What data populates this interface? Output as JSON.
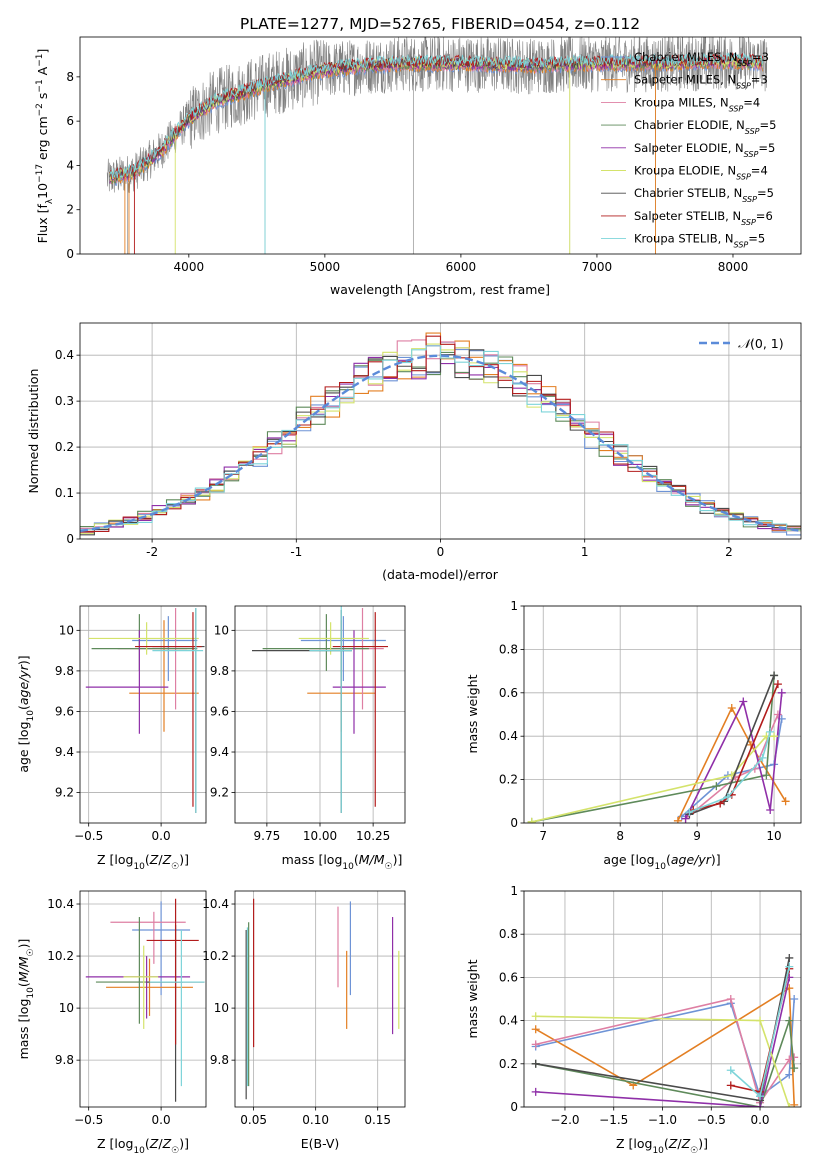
{
  "figure_title": "PLATE=1277, MJD=52765, FIBERID=0454, z=0.112",
  "colors": {
    "data": "#808080",
    "models": [
      "#6e93d6",
      "#e37f23",
      "#de7fa3",
      "#5e8a5a",
      "#8f2fa8",
      "#d4e36b",
      "#4a4a4a",
      "#b21c1c",
      "#7dd4d9"
    ],
    "normal": "#5b8bd9"
  },
  "chart_data": [
    {
      "id": "spectrum",
      "type": "line",
      "xlabel": "wavelength [Angstrom, rest frame]",
      "ylabel": "Flux [f_λ 10^-17 erg cm^-2 s^-1 A^-1]",
      "xlim": [
        3200,
        8500
      ],
      "ylim": [
        0,
        9.8
      ],
      "xticks": [
        4000,
        5000,
        6000,
        7000,
        8000
      ],
      "yticks": [
        0,
        2,
        4,
        6,
        8
      ],
      "grid": false,
      "legend_position": "top-right",
      "legend": [
        {
          "model": "Chabrier MILES",
          "nssp": "3"
        },
        {
          "model": "Salpeter MILES",
          "nssp": "3"
        },
        {
          "model": "Kroupa MILES",
          "nssp": "4"
        },
        {
          "model": "Chabrier ELODIE",
          "nssp": "5"
        },
        {
          "model": "Salpeter ELODIE",
          "nssp": "5"
        },
        {
          "model": "Kroupa ELODIE",
          "nssp": "4"
        },
        {
          "model": "Chabrier STELIB",
          "nssp": "5"
        },
        {
          "model": "Salpeter STELIB",
          "nssp": "6"
        },
        {
          "model": "Kroupa STELIB",
          "nssp": "5"
        }
      ],
      "wavelength_range": [
        3400,
        8250
      ],
      "continuum": {
        "x": [
          3400,
          3600,
          3800,
          4000,
          4200,
          4400,
          4600,
          4800,
          5000,
          5300,
          5600,
          6000,
          6500,
          7000,
          7500,
          8000,
          8250
        ],
        "y": [
          3.4,
          3.7,
          4.7,
          6.1,
          6.9,
          7.3,
          7.7,
          8.0,
          8.3,
          8.5,
          8.6,
          8.6,
          8.5,
          8.6,
          8.6,
          8.7,
          8.6
        ]
      }
    },
    {
      "id": "residuals",
      "type": "step",
      "xlabel": "(data-model)/error",
      "ylabel": "Normed distribution",
      "xlim": [
        -2.5,
        2.5
      ],
      "ylim": [
        0,
        0.47
      ],
      "xticks": [
        -2,
        -1,
        0,
        1,
        2
      ],
      "yticks": [
        0.0,
        0.1,
        0.2,
        0.3,
        0.4
      ],
      "grid": true,
      "legend_position": "top-right",
      "legend": [
        {
          "label": "N(0,1)"
        }
      ],
      "normal_curve": {
        "mean": 0,
        "sigma": 1
      }
    },
    {
      "id": "age_vs_Z",
      "type": "errorbar",
      "xlabel": "Z [log10(Z/Z☉)]",
      "ylabel": "age [log10(age/yr)]",
      "xlim": [
        -0.56,
        0.31
      ],
      "ylim": [
        9.05,
        10.12
      ],
      "xticks": [
        -0.5,
        0.0
      ],
      "xtick_labels": [
        "−0.5",
        "0.0"
      ],
      "yticks": [
        9.2,
        9.4,
        9.6,
        9.8,
        10.0
      ],
      "grid": true,
      "series": [
        {
          "x": 0.05,
          "xerr": [
            0.25,
            0.2
          ],
          "y": 9.95,
          "yerr": [
            0.2,
            0.12
          ]
        },
        {
          "x": 0.02,
          "xerr": [
            0.24,
            0.24
          ],
          "y": 9.69,
          "yerr": [
            0.19,
            0.36
          ]
        },
        {
          "x": 0.1,
          "xerr": [
            0.4,
            0.08
          ],
          "y": 9.91,
          "yerr": [
            0.3,
            0.2
          ]
        },
        {
          "x": -0.15,
          "xerr": [
            0.33,
            0.4
          ],
          "y": 9.91,
          "yerr": [
            0.11,
            0.17
          ]
        },
        {
          "x": -0.15,
          "xerr": [
            0.37,
            0.2
          ],
          "y": 9.72,
          "yerr": [
            0.23,
            0.28
          ]
        },
        {
          "x": -0.1,
          "xerr": [
            0.4,
            0.36
          ],
          "y": 9.96,
          "yerr": [
            0.08,
            0.08
          ]
        },
        {
          "x": 0.24,
          "xerr": [
            0.3,
            0.06
          ],
          "y": 9.92,
          "yerr": [
            0.82,
            0.19
          ]
        },
        {
          "x": 0.22,
          "xerr": [
            0.4,
            0.06
          ],
          "y": 9.92,
          "yerr": [
            0.79,
            0.17
          ]
        },
        {
          "x": 0.24,
          "xerr": [
            0.3,
            0.05
          ],
          "y": 9.9,
          "yerr": [
            0.8,
            0.21
          ]
        }
      ]
    },
    {
      "id": "age_vs_mass",
      "type": "errorbar",
      "xlabel": "mass [log10(M/M☉)]",
      "ylabel": "",
      "xlim": [
        9.6,
        10.4
      ],
      "ylim": [
        9.05,
        10.12
      ],
      "xticks": [
        9.75,
        10.0,
        10.25
      ],
      "xtick_labels": [
        "9.75",
        "10.00",
        "10.25"
      ],
      "xtick_display": "10.00110.25",
      "yticks": [
        9.2,
        9.4,
        9.6,
        9.8,
        10.0
      ],
      "grid": true,
      "series": [
        {
          "x": 10.11,
          "xerr": [
            0.2,
            0.2
          ],
          "y": 9.95,
          "yerr": [
            0.2,
            0.12
          ]
        },
        {
          "x": 10.1,
          "xerr": [
            0.16,
            0.16
          ],
          "y": 9.69,
          "yerr": [
            0.19,
            0.36
          ]
        },
        {
          "x": 10.2,
          "xerr": [
            0.25,
            0.1
          ],
          "y": 9.91,
          "yerr": [
            0.3,
            0.2
          ]
        },
        {
          "x": 10.03,
          "xerr": [
            0.3,
            0.2
          ],
          "y": 9.91,
          "yerr": [
            0.11,
            0.17
          ]
        },
        {
          "x": 10.16,
          "xerr": [
            0.1,
            0.15
          ],
          "y": 9.72,
          "yerr": [
            0.23,
            0.28
          ]
        },
        {
          "x": 10.05,
          "xerr": [
            0.15,
            0.18
          ],
          "y": 9.96,
          "yerr": [
            0.08,
            0.08
          ]
        },
        {
          "x": 10.1,
          "xerr": [
            0.42,
            0.05
          ],
          "y": 9.9,
          "yerr": [
            0.8,
            0.2
          ]
        },
        {
          "x": 10.26,
          "xerr": [
            0.2,
            0.06
          ],
          "y": 9.92,
          "yerr": [
            0.79,
            0.17
          ]
        },
        {
          "x": 10.1,
          "xerr": [
            0.15,
            0.05
          ],
          "y": 9.9,
          "yerr": [
            0.8,
            0.22
          ]
        }
      ]
    },
    {
      "id": "weight_vs_age",
      "type": "line",
      "xlabel": "age [log10(age/yr)]",
      "ylabel": "mass weight",
      "xlim": [
        6.75,
        10.35
      ],
      "ylim": [
        0,
        1.0
      ],
      "xticks": [
        7,
        8,
        9,
        10
      ],
      "yticks": [
        0.0,
        0.2,
        0.4,
        0.6,
        0.8,
        1.0
      ],
      "grid": true,
      "series": [
        {
          "x": [
            8.8,
            9.4,
            10.0,
            10.1
          ],
          "y": [
            0.03,
            0.22,
            0.27,
            0.48
          ]
        },
        {
          "x": [
            8.75,
            9.45,
            9.7,
            10.15
          ],
          "y": [
            0.01,
            0.53,
            0.36,
            0.1
          ]
        },
        {
          "x": [
            8.85,
            9.5,
            9.75,
            10.05
          ],
          "y": [
            0.02,
            0.21,
            0.25,
            0.5
          ]
        },
        {
          "x": [
            6.85,
            9.25,
            9.9,
            10.0
          ],
          "y": [
            0.005,
            0.17,
            0.22,
            0.68
          ]
        },
        {
          "x": [
            8.85,
            9.6,
            9.95,
            10.1
          ],
          "y": [
            0.02,
            0.56,
            0.06,
            0.6
          ]
        },
        {
          "x": [
            6.85,
            9.45,
            9.9,
            10.0
          ],
          "y": [
            0.005,
            0.22,
            0.4,
            0.4
          ]
        },
        {
          "x": [
            8.9,
            9.35,
            10.0
          ],
          "y": [
            0.04,
            0.1,
            0.68
          ]
        },
        {
          "x": [
            8.95,
            9.3,
            9.45,
            10.05
          ],
          "y": [
            0.06,
            0.09,
            0.13,
            0.64
          ]
        },
        {
          "x": [
            8.9,
            9.4,
            9.85,
            9.95
          ],
          "y": [
            0.05,
            0.12,
            0.3,
            0.42
          ]
        }
      ]
    },
    {
      "id": "mass_vs_Z",
      "type": "errorbar",
      "xlabel": "Z [log10(Z/Z☉)]",
      "ylabel": "mass [log10(M/M☉)]",
      "xlim": [
        -0.56,
        0.31
      ],
      "ylim": [
        9.62,
        10.45
      ],
      "xticks": [
        -0.5,
        0.0
      ],
      "xtick_labels": [
        "−0.5",
        "0.0"
      ],
      "yticks": [
        9.8,
        10.0,
        10.2,
        10.4
      ],
      "grid": true,
      "series": [
        {
          "x": 0.0,
          "xerr": [
            0.2,
            0.2
          ],
          "y": 10.3,
          "yerr": [
            0.25,
            0.11
          ]
        },
        {
          "x": -0.08,
          "xerr": [
            0.3,
            0.3
          ],
          "y": 10.08,
          "yerr": [
            0.11,
            0.11
          ]
        },
        {
          "x": -0.05,
          "xerr": [
            0.3,
            0.22
          ],
          "y": 10.33,
          "yerr": [
            0.16,
            0.04
          ]
        },
        {
          "x": -0.15,
          "xerr": [
            0.3,
            0.3
          ],
          "y": 10.1,
          "yerr": [
            0.16,
            0.25
          ]
        },
        {
          "x": -0.1,
          "xerr": [
            0.42,
            0.3
          ],
          "y": 10.12,
          "yerr": [
            0.16,
            0.08
          ]
        },
        {
          "x": -0.12,
          "xerr": [
            0.14,
            0.1
          ],
          "y": 10.12,
          "yerr": [
            0.2,
            0.12
          ]
        },
        {
          "x": 0.1,
          "xerr": [
            0.2,
            0.2
          ],
          "y": 10.1,
          "yerr": [
            0.46,
            0.22
          ]
        },
        {
          "x": 0.1,
          "xerr": [
            0.2,
            0.16
          ],
          "y": 10.26,
          "yerr": [
            0.4,
            0.16
          ]
        },
        {
          "x": 0.14,
          "xerr": [
            0.22,
            0.16
          ],
          "y": 10.1,
          "yerr": [
            0.4,
            0.2
          ]
        }
      ]
    },
    {
      "id": "mass_vs_EBV",
      "type": "errorbar",
      "xlabel": "E(B-V)",
      "ylabel": "",
      "xlim": [
        0.035,
        0.172
      ],
      "ylim": [
        9.62,
        10.45
      ],
      "xticks": [
        0.05,
        0.1,
        0.15
      ],
      "xtick_labels": [
        "0.05",
        "0.10",
        "0.15"
      ],
      "yticks": [
        9.8,
        10.0,
        10.2,
        10.4
      ],
      "grid": true,
      "series": [
        {
          "x": 0.128,
          "y": 10.17,
          "yerr": [
            0.12,
            0.24
          ]
        },
        {
          "x": 0.125,
          "y": 10.1,
          "yerr": [
            0.18,
            0.12
          ]
        },
        {
          "x": 0.118,
          "y": 10.23,
          "yerr": [
            0.15,
            0.16
          ]
        },
        {
          "x": 0.046,
          "y": 10.02,
          "yerr": [
            0.32,
            0.31
          ]
        },
        {
          "x": 0.162,
          "y": 10.05,
          "yerr": [
            0.15,
            0.3
          ]
        },
        {
          "x": 0.167,
          "y": 10.09,
          "yerr": [
            0.17,
            0.13
          ]
        },
        {
          "x": 0.044,
          "y": 9.95,
          "yerr": [
            0.3,
            0.35
          ]
        },
        {
          "x": 0.05,
          "y": 10.1,
          "yerr": [
            0.25,
            0.32
          ]
        },
        {
          "x": 0.045,
          "y": 9.98,
          "yerr": [
            0.28,
            0.33
          ]
        }
      ]
    },
    {
      "id": "weight_vs_Z",
      "type": "line",
      "xlabel": "Z [log10(Z/Z☉)]",
      "ylabel": "mass weight",
      "xlim": [
        -2.42,
        0.42
      ],
      "ylim": [
        0,
        1.0
      ],
      "xticks": [
        -2.0,
        -1.5,
        -1.0,
        -0.5,
        0.0
      ],
      "xtick_labels": [
        "−2.0",
        "−1.5",
        "−1.0",
        "−0.5",
        "0.0"
      ],
      "yticks": [
        0.0,
        0.2,
        0.4,
        0.6,
        0.8,
        1.0
      ],
      "grid": true,
      "series": [
        {
          "x": [
            -2.3,
            -0.3,
            0.0,
            0.3,
            0.35
          ],
          "y": [
            0.28,
            0.48,
            0.05,
            0.15,
            0.5
          ]
        },
        {
          "x": [
            -2.3,
            -1.3,
            0.3,
            0.35
          ],
          "y": [
            0.36,
            0.1,
            0.55,
            0.01
          ]
        },
        {
          "x": [
            -2.3,
            -0.3,
            0.0,
            0.3,
            0.35
          ],
          "y": [
            0.29,
            0.5,
            0.02,
            0.22,
            0.23
          ]
        },
        {
          "x": [
            -2.3,
            0.0,
            0.3,
            0.35
          ],
          "y": [
            0.2,
            0.0,
            0.4,
            0.18
          ]
        },
        {
          "x": [
            -2.3,
            0.0,
            0.3
          ],
          "y": [
            0.07,
            0.0,
            0.6
          ]
        },
        {
          "x": [
            -2.3,
            0.0,
            0.3
          ],
          "y": [
            0.42,
            0.4,
            0.0
          ]
        },
        {
          "x": [
            -2.3,
            0.0,
            0.3
          ],
          "y": [
            0.2,
            0.03,
            0.69
          ]
        },
        {
          "x": [
            -0.3,
            0.0,
            0.3
          ],
          "y": [
            0.1,
            0.07,
            0.64
          ]
        },
        {
          "x": [
            -0.3,
            0.0,
            0.3
          ],
          "y": [
            0.17,
            0.05,
            0.65
          ]
        }
      ]
    }
  ]
}
